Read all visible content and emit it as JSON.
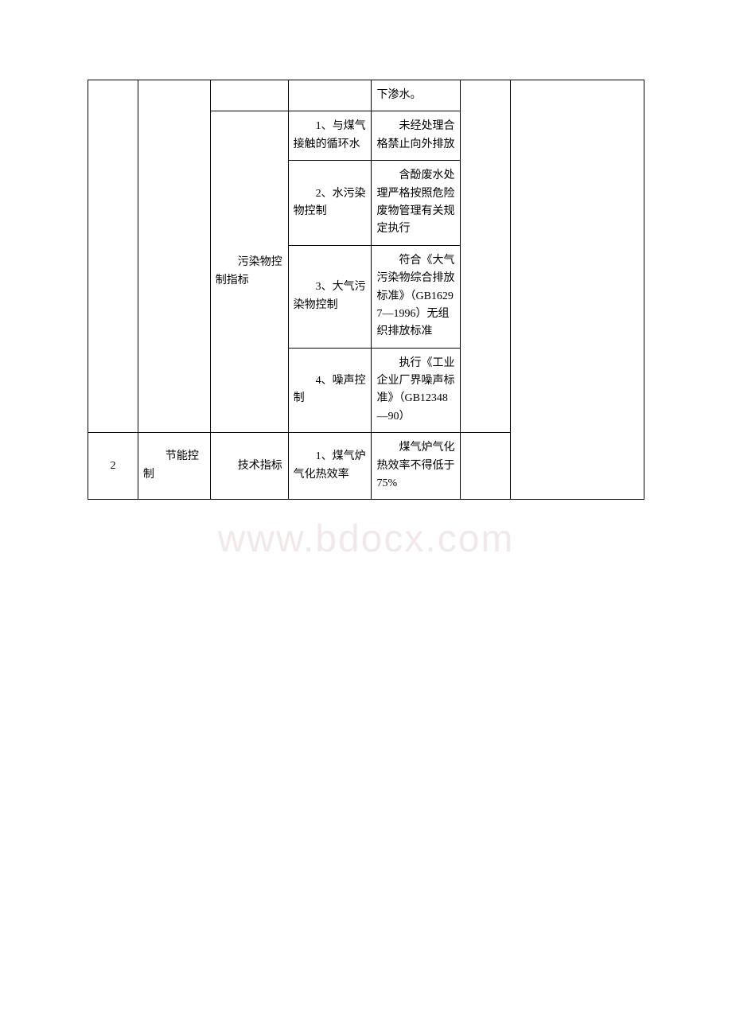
{
  "watermark": "www.bdocx.com",
  "table": {
    "rows": [
      {
        "col1": "",
        "col2": "",
        "col3": "",
        "col4": "",
        "col5": "下渗水。",
        "col6": "",
        "col7": ""
      },
      {
        "col3": "污染物控制指标",
        "col4": "1、与煤气接触的循环水",
        "col5": "未经处理合格禁止向外排放"
      },
      {
        "col4": "2、水污染物控制",
        "col5": "含酚废水处理严格按照危险废物管理有关规定执行"
      },
      {
        "col4": "3、大气污染物控制",
        "col5": "符合《大气污染物综合排放标准》（GB16297—1996）无组织排放标准"
      },
      {
        "col4": "4、噪声控制",
        "col5": "执行《工业企业厂界噪声标准》（GB12348—90）"
      },
      {
        "col1": "2",
        "col2": "节能控制",
        "col3": "技术指标",
        "col4": "1、煤气炉气化热效率",
        "col5": "煤气炉气化热效率不得低于75%",
        "col6": ""
      }
    ]
  }
}
